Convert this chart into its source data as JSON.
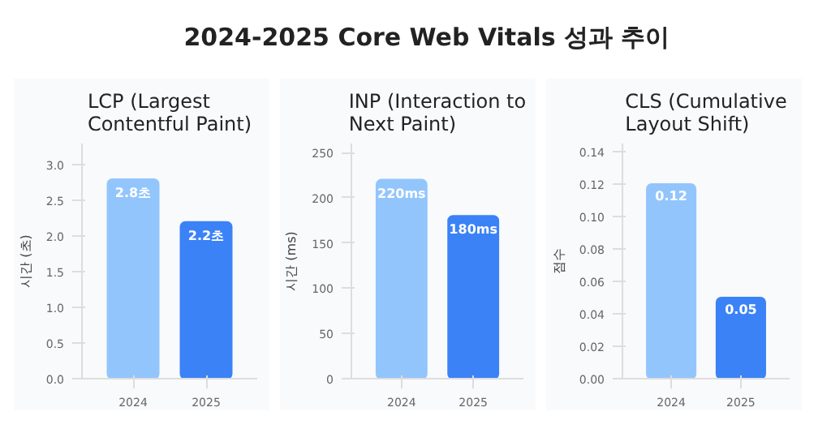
{
  "chart_data": [
    {
      "type": "bar",
      "title": "LCP (Largest Contentful Paint)",
      "annotations": [
        "2024-2025 Core Web Vitals 성과 추이"
      ],
      "ylabel": "시간 (초)",
      "categories": [
        "2024",
        "2025"
      ],
      "values": [
        2.8,
        2.2
      ],
      "colors": [
        "#93c5fd",
        "#3b82f6"
      ],
      "value_labels": [
        "2.8초",
        "2.2초"
      ],
      "ylim": [
        0,
        3.3
      ],
      "yticks": [
        "0.0",
        "0.5",
        "1.0",
        "1.5",
        "2.0",
        "2.5",
        "3.0"
      ],
      "grid": false
    },
    {
      "type": "bar",
      "title": "INP (Interaction to Next Paint)",
      "ylabel": "시간 (ms)",
      "categories": [
        "2024",
        "2025"
      ],
      "values": [
        220,
        180
      ],
      "colors": [
        "#93c5fd",
        "#3b82f6"
      ],
      "value_labels": [
        "220ms",
        "180ms"
      ],
      "ylim": [
        0,
        260
      ],
      "yticks": [
        0,
        50,
        100,
        150,
        200,
        250
      ],
      "grid": false
    },
    {
      "type": "bar",
      "title": "CLS (Cumulative Layout Shift)",
      "ylabel": "점수",
      "categories": [
        "2024",
        "2025"
      ],
      "values": [
        0.12,
        0.05
      ],
      "colors": [
        "#93c5fd",
        "#3b82f6"
      ],
      "data_labels": true,
      "ylim": [
        0,
        0.145
      ],
      "yticks": [
        "0.00",
        "0.02",
        "0.04",
        "0.06",
        "0.08",
        "0.10",
        "0.12",
        "0.14"
      ],
      "grid": false
    }
  ]
}
